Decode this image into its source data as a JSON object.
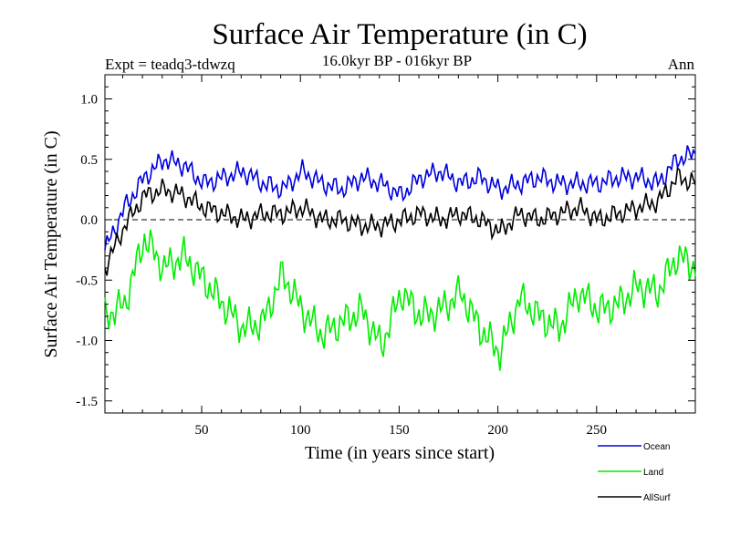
{
  "chart_data": {
    "type": "line",
    "title": "Surface Air Temperature (in C)",
    "subtitle": "16.0kyr BP - 016kyr BP",
    "experiment_label": "Expt = teadq3-tdwzq",
    "season_label": "Ann",
    "xlabel": "Time (in years since start)",
    "ylabel": "Surface Air Temperature (in C)",
    "xlim": [
      1,
      300
    ],
    "ylim": [
      -1.6,
      1.2
    ],
    "xticks": [
      50,
      100,
      150,
      200,
      250
    ],
    "xtick_labels": [
      "50",
      "100",
      "150",
      "200",
      "250"
    ],
    "yticks": [
      -1.5,
      -1.0,
      -0.5,
      0.0,
      0.5,
      1.0
    ],
    "ytick_labels": [
      "-1.5",
      "-1.0",
      "-0.5",
      "0.0",
      "0.5",
      "1.0"
    ],
    "zero_line": "dashed",
    "x_step": 10,
    "series": [
      {
        "name": "Ocean",
        "color": "#0000dd",
        "values": [
          -0.25,
          0.1,
          0.35,
          0.5,
          0.45,
          0.3,
          0.35,
          0.4,
          0.3,
          0.25,
          0.4,
          0.3,
          0.25,
          0.35,
          0.3,
          0.2,
          0.35,
          0.4,
          0.3,
          0.35,
          0.25,
          0.3,
          0.35,
          0.3,
          0.3,
          0.3,
          0.35,
          0.35,
          0.3,
          0.5,
          0.55
        ]
      },
      {
        "name": "Land",
        "color": "#00ee00",
        "values": [
          -0.8,
          -0.7,
          -0.15,
          -0.4,
          -0.3,
          -0.5,
          -0.7,
          -0.9,
          -0.85,
          -0.45,
          -0.75,
          -0.95,
          -0.85,
          -0.75,
          -1.05,
          -0.6,
          -0.8,
          -0.75,
          -0.6,
          -0.9,
          -1.1,
          -0.65,
          -0.8,
          -0.9,
          -0.6,
          -0.75,
          -0.7,
          -0.55,
          -0.6,
          -0.3,
          -0.4
        ]
      },
      {
        "name": "AllSurf",
        "color": "#000000",
        "values": [
          -0.4,
          -0.05,
          0.2,
          0.25,
          0.2,
          0.1,
          0.05,
          0.0,
          0.05,
          0.05,
          0.1,
          0.0,
          0.0,
          -0.05,
          -0.05,
          0.0,
          0.05,
          0.0,
          0.05,
          0.0,
          -0.1,
          0.05,
          0.0,
          0.05,
          0.1,
          0.0,
          0.05,
          0.1,
          0.15,
          0.35,
          0.3
        ]
      }
    ]
  }
}
